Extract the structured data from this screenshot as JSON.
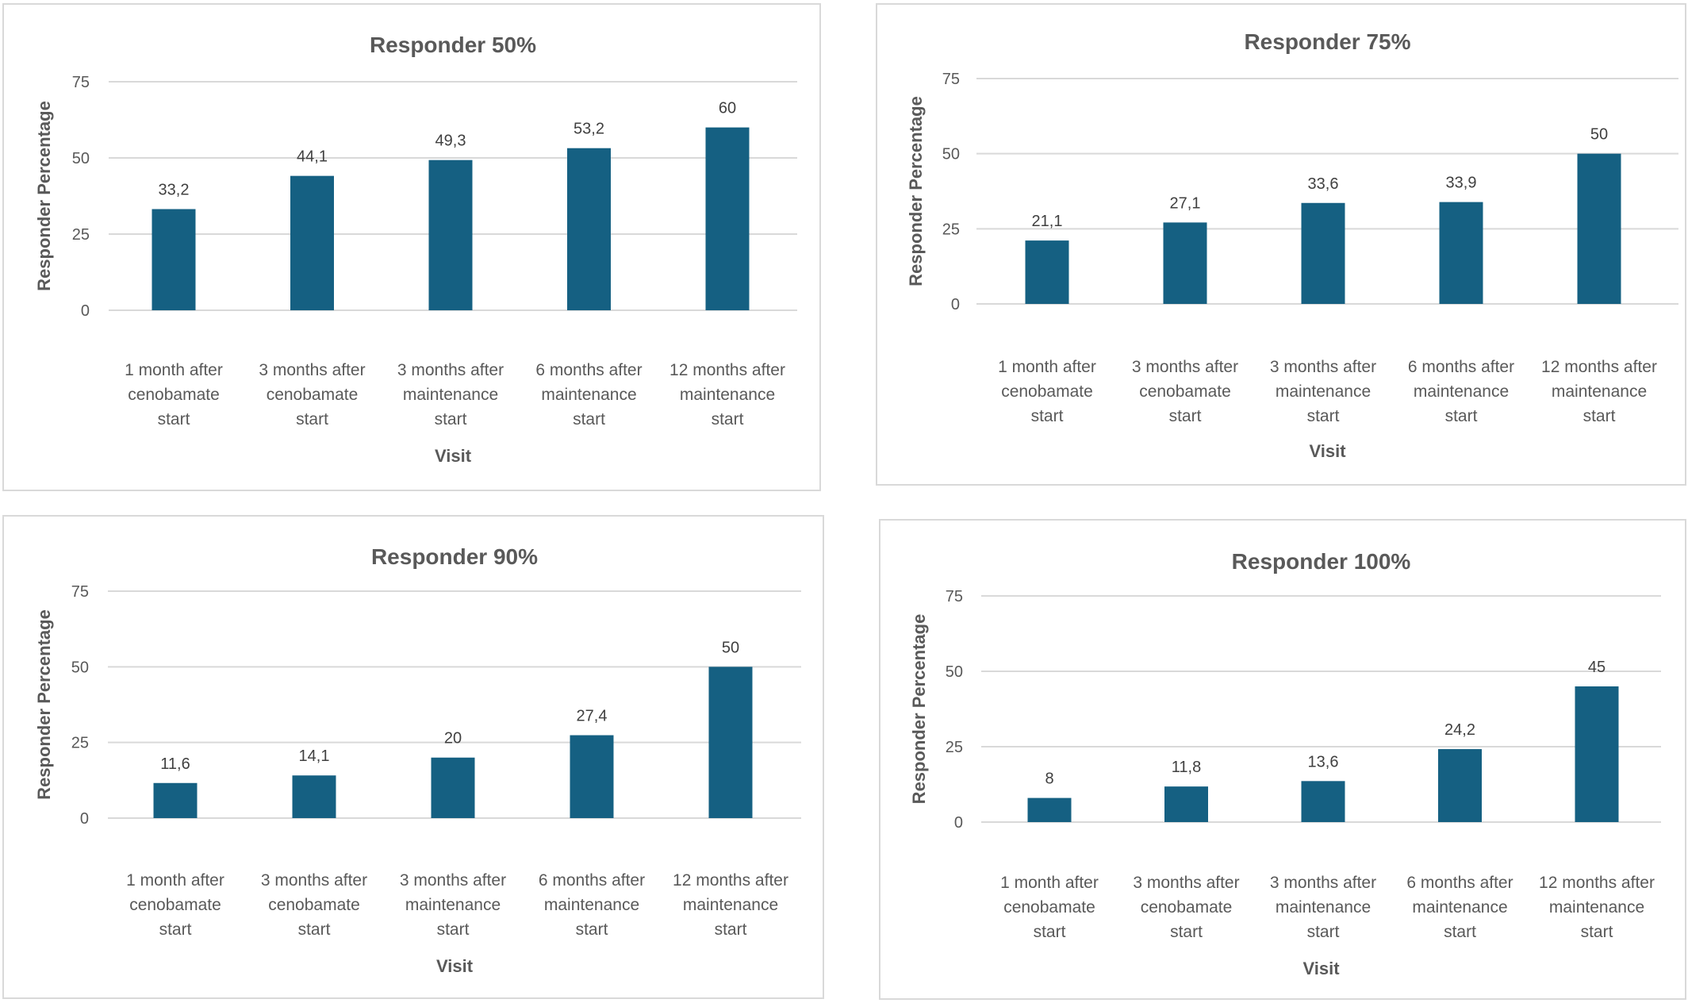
{
  "chart_data": [
    {
      "type": "bar",
      "title": "Responder 50%",
      "xlabel": "Visit",
      "ylabel": "Responder Percentage",
      "categories": [
        [
          "1 month after",
          "cenobamate",
          "start"
        ],
        [
          "3 months after",
          "cenobamate",
          "start"
        ],
        [
          "3 months after",
          "maintenance",
          "start"
        ],
        [
          "6 months after",
          "maintenance",
          "start"
        ],
        [
          "12 months after",
          "maintenance",
          "start"
        ]
      ],
      "values": [
        33.2,
        44.1,
        49.3,
        53.2,
        60
      ],
      "data_labels": [
        "33,2",
        "44,1",
        "49,3",
        "53,2",
        "60"
      ],
      "ylim": [
        0,
        75
      ],
      "yticks": [
        "0",
        "25",
        "50",
        "75"
      ],
      "grid": true,
      "color": "#156082"
    },
    {
      "type": "bar",
      "title": "Responder 75%",
      "xlabel": "Visit",
      "ylabel": "Responder Percentage",
      "categories": [
        [
          "1 month after",
          "cenobamate",
          "start"
        ],
        [
          "3 months after",
          "cenobamate",
          "start"
        ],
        [
          "3 months after",
          "maintenance",
          "start"
        ],
        [
          "6 months after",
          "maintenance",
          "start"
        ],
        [
          "12 months after",
          "maintenance",
          "start"
        ]
      ],
      "values": [
        21.1,
        27.1,
        33.6,
        33.9,
        50
      ],
      "data_labels": [
        "21,1",
        "27,1",
        "33,6",
        "33,9",
        "50"
      ],
      "ylim": [
        0,
        75
      ],
      "yticks": [
        "0",
        "25",
        "50",
        "75"
      ],
      "grid": true,
      "color": "#156082"
    },
    {
      "type": "bar",
      "title": "Responder 90%",
      "xlabel": "Visit",
      "ylabel": "Responder Percentage",
      "categories": [
        [
          "1 month after",
          "cenobamate",
          "start"
        ],
        [
          "3 months after",
          "cenobamate",
          "start"
        ],
        [
          "3 months after",
          "maintenance",
          "start"
        ],
        [
          "6 months after",
          "maintenance",
          "start"
        ],
        [
          "12 months after",
          "maintenance",
          "start"
        ]
      ],
      "values": [
        11.6,
        14.1,
        20,
        27.4,
        50
      ],
      "data_labels": [
        "11,6",
        "14,1",
        "20",
        "27,4",
        "50"
      ],
      "ylim": [
        0,
        75
      ],
      "yticks": [
        "0",
        "25",
        "50",
        "75"
      ],
      "grid": true,
      "color": "#156082"
    },
    {
      "type": "bar",
      "title": "Responder 100%",
      "xlabel": "Visit",
      "ylabel": "Responder Percentage",
      "categories": [
        [
          "1 month after",
          "cenobamate",
          "start"
        ],
        [
          "3 months after",
          "cenobamate",
          "start"
        ],
        [
          "3 months after",
          "maintenance",
          "start"
        ],
        [
          "6 months after",
          "maintenance",
          "start"
        ],
        [
          "12 months after",
          "maintenance",
          "start"
        ]
      ],
      "values": [
        8,
        11.8,
        13.6,
        24.2,
        45
      ],
      "data_labels": [
        "8",
        "11,8",
        "13,6",
        "24,2",
        "45"
      ],
      "ylim": [
        0,
        75
      ],
      "yticks": [
        "0",
        "25",
        "50",
        "75"
      ],
      "grid": true,
      "color": "#156082"
    }
  ]
}
